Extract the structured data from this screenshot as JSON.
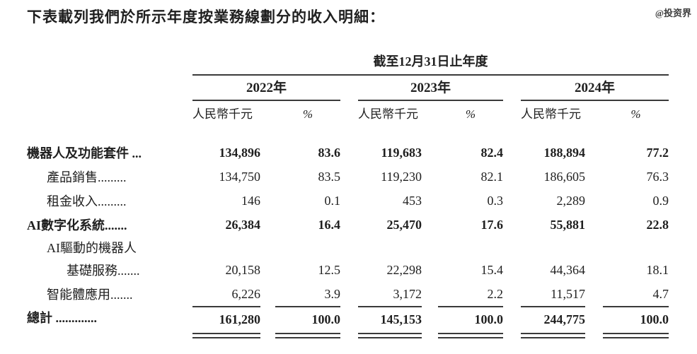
{
  "title": "下表載列我們於所示年度按業務線劃分的收入明細：",
  "watermark": "@投资界",
  "colors": {
    "text": "#1f1f1f",
    "rule": "#3a3a3a",
    "background": "#ffffff"
  },
  "table": {
    "period_header": "截至12月31日止年度",
    "years": [
      "2022年",
      "2023年",
      "2024年"
    ],
    "subheaders": {
      "amount": "人民幣千元",
      "percent": "%"
    },
    "rows": [
      {
        "label": "機器人及功能套件 ...",
        "values": [
          "134,896",
          "83.6",
          "119,683",
          "82.4",
          "188,894",
          "77.2"
        ]
      },
      {
        "label": "產品銷售.........",
        "values": [
          "134,750",
          "83.5",
          "119,230",
          "82.1",
          "186,605",
          "76.3"
        ]
      },
      {
        "label": "租金收入.........",
        "values": [
          "146",
          "0.1",
          "453",
          "0.3",
          "2,289",
          "0.9"
        ]
      },
      {
        "label": "AI數字化系統.......",
        "values": [
          "26,384",
          "16.4",
          "25,470",
          "17.6",
          "55,881",
          "22.8"
        ]
      },
      {
        "label": "AI驅動的機器人",
        "values": [
          "",
          "",
          "",
          "",
          "",
          ""
        ]
      },
      {
        "label": "基礎服務.......",
        "values": [
          "20,158",
          "12.5",
          "22,298",
          "15.4",
          "44,364",
          "18.1"
        ]
      },
      {
        "label": "智能體應用.......",
        "values": [
          "6,226",
          "3.9",
          "3,172",
          "2.2",
          "11,517",
          "4.7"
        ]
      },
      {
        "label": "總計 .............",
        "values": [
          "161,280",
          "100.0",
          "145,153",
          "100.0",
          "244,775",
          "100.0"
        ]
      }
    ]
  }
}
